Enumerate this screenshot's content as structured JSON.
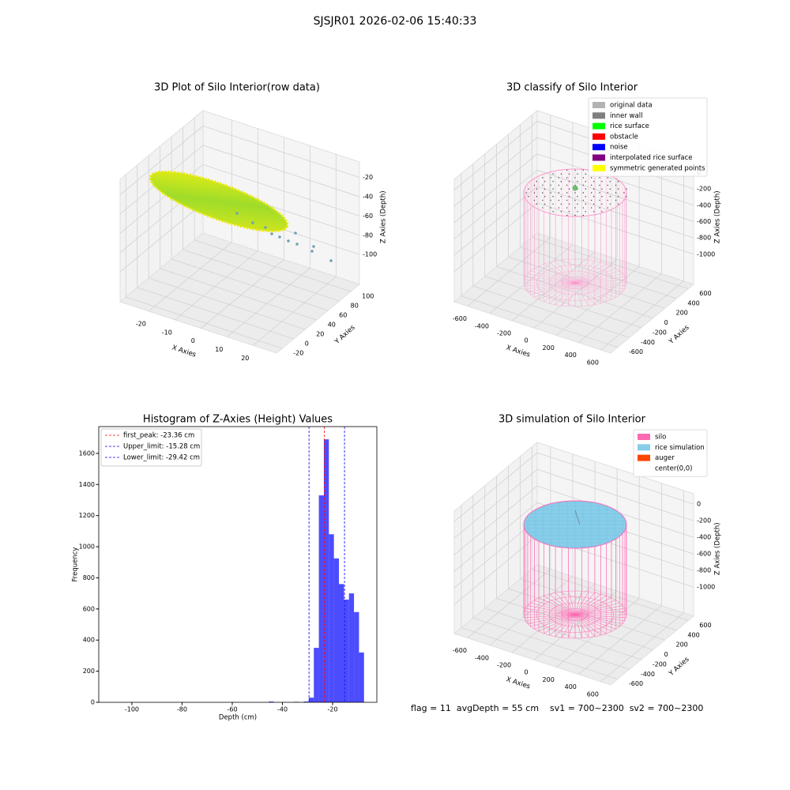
{
  "title": "SJSJR01 2026-02-06 15:40:33",
  "footer": "flag = 11  avgDepth = 55 cm    sv1 = 700~2300  sv2 = 700~2300",
  "chart_data": [
    {
      "type": "scatter3d",
      "title": "3D Plot of Silo Interior(row data)",
      "xlabel": "X Axies",
      "ylabel": "Y Axies",
      "zlabel": "Z Axies (Depth)",
      "xlim": [
        -31,
        29
      ],
      "ylim": [
        -30,
        115
      ],
      "zlim": [
        -131,
        -4
      ],
      "xticks": [
        -20,
        -10,
        0,
        10,
        20
      ],
      "yticks": [
        -20,
        0,
        20,
        40,
        60,
        80,
        100
      ],
      "zticks": [
        -100,
        -80,
        -60,
        -40,
        -20
      ]
    },
    {
      "type": "classify3d",
      "title": "3D classify of Silo Interior",
      "xlabel": "X Axies",
      "ylabel": "Y Axies",
      "zlabel": "Z Axies (Depth)",
      "xlim": [
        -720,
        690
      ],
      "ylim": [
        -720,
        690
      ],
      "zlim": [
        -1370,
        130
      ],
      "xticks": [
        -600,
        -400,
        -200,
        0,
        200,
        400,
        600
      ],
      "yticks": [
        -600,
        -400,
        -200,
        0,
        200,
        400,
        600
      ],
      "zticks": [
        -1000,
        -800,
        -600,
        -400,
        -200,
        0
      ],
      "legend_position": "upper right",
      "legend": [
        {
          "name": "original data",
          "color": "#b3b3b3"
        },
        {
          "name": "inner wall",
          "color": "#808080"
        },
        {
          "name": "rice surface",
          "color": "#00ff00"
        },
        {
          "name": "obstacle",
          "color": "#ff0000"
        },
        {
          "name": "noise",
          "color": "#0000ff"
        },
        {
          "name": "interpolated rice surface",
          "color": "#800080"
        },
        {
          "name": "symmetric generated points",
          "color": "#ffff00"
        }
      ]
    },
    {
      "type": "histogram",
      "title": "Histogram of Z-Axies (Height) Values",
      "xlabel": "Depth (cm)",
      "ylabel": "Frequency",
      "bins": [
        -45.5,
        -43.5,
        -41.5,
        -39.5,
        -37.5,
        -35.5,
        -33.5,
        -31.5,
        -29.5,
        -27.5,
        -25.5,
        -23.5,
        -21.5,
        -19.5,
        -17.5,
        -15.5,
        -13.5,
        -11.5,
        -9.5,
        -7.5
      ],
      "counts": [
        5,
        0,
        0,
        0,
        0,
        3,
        0,
        5,
        30,
        350,
        1330,
        1690,
        1080,
        925,
        760,
        660,
        700,
        580,
        320
      ],
      "color": "#0000ff",
      "alpha": 0.7,
      "xlim": [
        -113.2,
        -2.4
      ],
      "ylim": [
        0,
        1772
      ],
      "xticks": [
        -100,
        -80,
        -60,
        -40,
        -20
      ],
      "yticks": [
        0,
        200,
        400,
        600,
        800,
        1000,
        1200,
        1400,
        1600
      ],
      "legend_position": "upper left",
      "vlines": [
        {
          "label": "first_peak: -23.36 cm",
          "value": -23.36,
          "color": "#ff0000"
        },
        {
          "label": "Upper_limit: -15.28 cm",
          "value": -15.28,
          "color": "#0000ff"
        },
        {
          "label": "Lower_limit: -29.42 cm",
          "value": -29.42,
          "color": "#0000ff"
        }
      ]
    },
    {
      "type": "simulation3d",
      "title": "3D simulation of Silo Interior",
      "xlabel": "X Axies",
      "ylabel": "Y Axies",
      "zlabel": "Z Axies (Depth)",
      "xlim": [
        -720,
        690
      ],
      "ylim": [
        -720,
        690
      ],
      "zlim": [
        -1350,
        125
      ],
      "xticks": [
        -600,
        -400,
        -200,
        0,
        200,
        400,
        600
      ],
      "yticks": [
        -600,
        -400,
        -200,
        0,
        200,
        400,
        600
      ],
      "zticks": [
        -1000,
        -800,
        -600,
        -400,
        -200,
        0
      ],
      "legend_position": "upper right",
      "legend": [
        {
          "name": "silo",
          "color": "#ff69b4"
        },
        {
          "name": "rice simulation",
          "color": "#87ceeb"
        },
        {
          "name": "auger",
          "color": "#ff4500"
        },
        {
          "name": "center(0,0)",
          "color": "#ffffff"
        }
      ]
    }
  ]
}
